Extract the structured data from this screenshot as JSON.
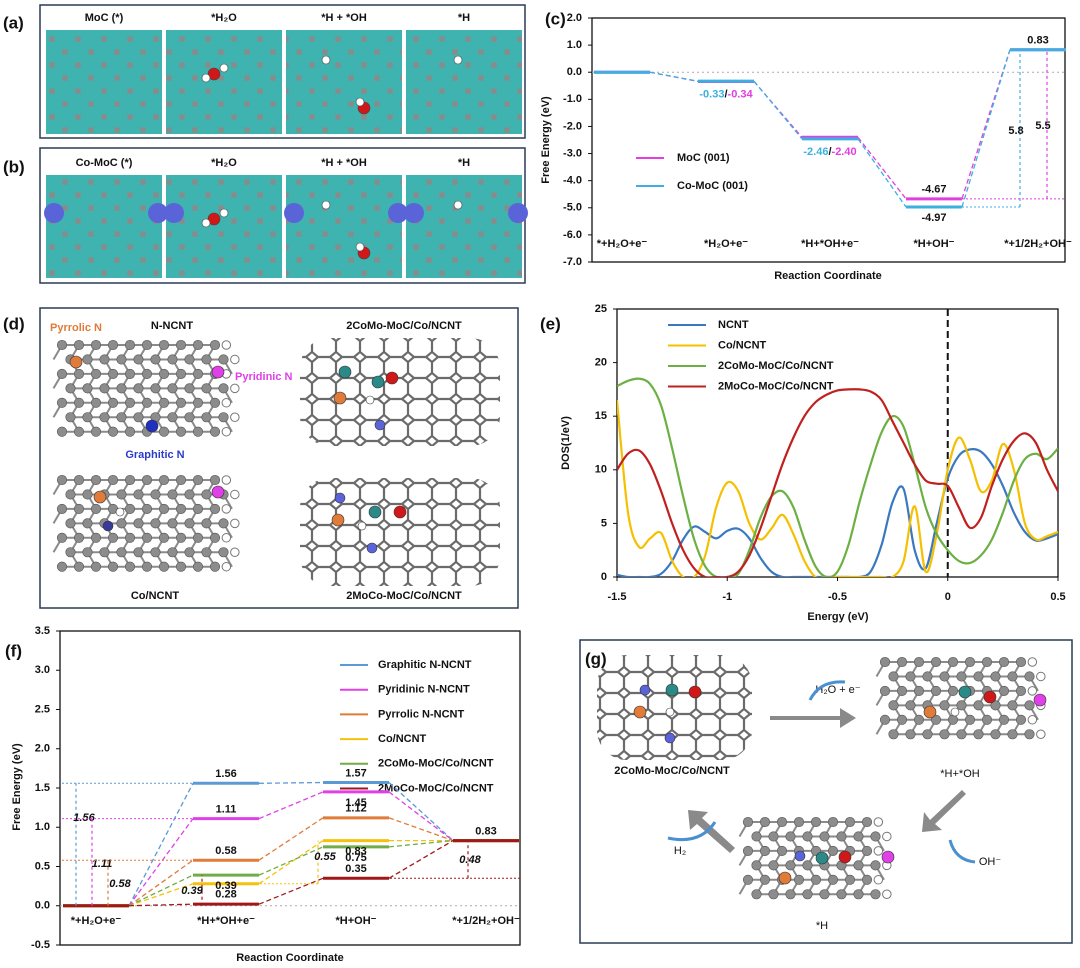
{
  "panels": {
    "a": {
      "label": "(a)",
      "captions": [
        "MoC (*)",
        "*H₂O",
        "*H + *OH",
        "*H"
      ]
    },
    "b": {
      "label": "(b)",
      "captions": [
        "Co-MoC (*)",
        "*H₂O",
        "*H + *OH",
        "*H"
      ]
    },
    "d": {
      "label": "(d)",
      "texts": {
        "pyrrolic": "Pyrrolic N",
        "nncnt": "N-NCNT",
        "cmo": "2CoMo-MoC/Co/NCNT",
        "pyridinic": "Pyridinic N",
        "graphitic": "Graphitic N",
        "conc": "Co/NCNT",
        "mco": "2MoCo-MoC/Co/NCNT"
      }
    },
    "g": {
      "label": "(g)",
      "texts": {
        "step1": "H₂O + e⁻",
        "start": "2CoMo-MoC/Co/NCNT",
        "hoh": "*H+*OH",
        "oh": "OH⁻",
        "h2": "H₂",
        "h": "*H"
      }
    }
  },
  "chart_data": [
    {
      "type": "step",
      "label": "(c)",
      "ylabel": "Free Energy (eV)",
      "xlabel": "Reaction Coordinate",
      "categories": [
        "*+H₂O+e⁻",
        "*H₂O+e⁻",
        "*H+*OH+e⁻",
        "*H+OH⁻",
        "*+1/2H₂+OH⁻"
      ],
      "series": [
        {
          "name": "MoC (001)",
          "color": "#e23ee0",
          "values": [
            0,
            -0.34,
            -2.4,
            -4.67,
            0.83
          ],
          "value_labels": [
            null,
            "-0.34",
            "-2.40",
            "-4.67",
            "0.83"
          ]
        },
        {
          "name": "Co-MoC (001)",
          "color": "#3cb0e0",
          "values": [
            0,
            -0.33,
            -2.46,
            -4.97,
            0.83
          ],
          "value_labels": [
            null,
            "-0.33",
            "-2.46",
            "-4.97",
            null
          ]
        }
      ],
      "label_separator": "/",
      "annotations": [
        {
          "value": 5.8,
          "color": "#3cb0e0"
        },
        {
          "value": 5.5,
          "color": "#e23ee0"
        }
      ],
      "hline": 0,
      "ylim": [
        -7,
        2
      ],
      "yticks": [
        {
          "value": 2,
          "label": "2.0"
        },
        {
          "value": 1,
          "label": "1.0"
        },
        {
          "value": 0,
          "label": "0.0"
        },
        {
          "value": -1,
          "label": "-1.0"
        },
        {
          "value": -2,
          "label": "-2.0"
        },
        {
          "value": -3,
          "label": "-3.0"
        },
        {
          "value": -4,
          "label": "-4.0"
        },
        {
          "value": -5,
          "label": "-5.0"
        },
        {
          "value": -6,
          "label": "-6.0"
        },
        {
          "value": -7,
          "label": "-7.0"
        }
      ]
    },
    {
      "type": "line",
      "label": "(e)",
      "ylabel": "DOS(1/eV)",
      "xlabel": "Energy (eV)",
      "x": [
        -1.5,
        -1.45,
        -1.4,
        -1.35,
        -1.3,
        -1.25,
        -1.2,
        -1.15,
        -1.1,
        -1.05,
        -1.0,
        -0.95,
        -0.9,
        -0.85,
        -0.8,
        -0.75,
        -0.7,
        -0.65,
        -0.6,
        -0.55,
        -0.5,
        -0.45,
        -0.4,
        -0.35,
        -0.3,
        -0.25,
        -0.2,
        -0.15,
        -0.1,
        -0.05,
        0,
        0.05,
        0.1,
        0.15,
        0.2,
        0.25,
        0.3,
        0.35,
        0.4,
        0.45,
        0.5
      ],
      "series": [
        {
          "name": "NCNT",
          "color": "#3a78c0",
          "values": [
            0.2,
            0,
            0,
            0,
            0.3,
            1.5,
            3.5,
            4.7,
            4.2,
            3.6,
            4.3,
            4.5,
            3.6,
            1.8,
            0.5,
            0,
            0,
            0,
            0,
            0,
            0,
            0,
            0,
            0.5,
            3,
            7,
            8.2,
            2.5,
            0.8,
            5,
            9.2,
            11.3,
            11.9,
            11.7,
            10.5,
            8.5,
            6,
            4.2,
            3.4,
            3.6,
            4
          ]
        },
        {
          "name": "Co/NCNT",
          "color": "#f5c000",
          "values": [
            16.5,
            6,
            2.8,
            3.6,
            4.1,
            1.5,
            0,
            0,
            2,
            6.5,
            8.8,
            8,
            5,
            3.5,
            4.5,
            5.8,
            4,
            1.5,
            0,
            0,
            0,
            0,
            0,
            0,
            0,
            0,
            1.5,
            6.6,
            0.5,
            4,
            10,
            13,
            11,
            8,
            9,
            12.4,
            10,
            5,
            3.5,
            3.8,
            4.2
          ]
        },
        {
          "name": "2CoMo-MoC/Co/NCNT",
          "color": "#6cb043",
          "values": [
            17.8,
            18.3,
            18.5,
            18,
            16,
            12,
            7.5,
            3.5,
            1,
            0,
            0,
            0.3,
            2.5,
            5.5,
            7.5,
            8,
            6.5,
            3.5,
            1,
            0,
            0.5,
            3,
            7,
            10.5,
            13.5,
            15,
            14,
            10.5,
            6.5,
            4,
            2.5,
            1.5,
            1.3,
            2,
            3.5,
            6,
            9,
            11,
            11.5,
            11,
            12
          ]
        },
        {
          "name": "2MoCo-MoC/Co/NCNT",
          "color": "#c0201e",
          "values": [
            10,
            11.5,
            11.8,
            10.5,
            8,
            5,
            2.5,
            0.8,
            0,
            0,
            0,
            0.5,
            2,
            4.5,
            7.5,
            10.5,
            13,
            15,
            16.3,
            17,
            17.4,
            17.5,
            17.5,
            17.3,
            16.5,
            14.5,
            12.5,
            10.5,
            9,
            8.7,
            8.5,
            6.5,
            4.6,
            5.5,
            8.5,
            11,
            12.7,
            13.4,
            12.5,
            10,
            8
          ]
        }
      ],
      "vline": 0,
      "xlim": [
        -1.5,
        0.5
      ],
      "xticks": [
        -1.5,
        -1,
        -0.5,
        0,
        0.5
      ],
      "ylim": [
        0,
        25
      ],
      "yticks": [
        0,
        5,
        10,
        15,
        20,
        25
      ]
    },
    {
      "type": "step",
      "label": "(f)",
      "ylabel": "Free Energy (eV)",
      "xlabel": "Reaction Coordinate",
      "categories": [
        "*+H₂O+e⁻",
        "*H+*OH+e⁻",
        "*H+OH⁻",
        "*+1/2H₂+OH⁻"
      ],
      "series": [
        {
          "name": "Graphitic N-NCNT",
          "color": "#5b9bd5",
          "values": [
            0,
            1.56,
            1.57,
            0.83
          ],
          "value_labels": [
            null,
            "1.56",
            "1.57",
            null
          ]
        },
        {
          "name": "Pyridinic N-NCNT",
          "color": "#e040e8",
          "values": [
            0,
            1.11,
            1.45,
            0.83
          ],
          "value_labels": [
            null,
            "1.11",
            "1.45",
            null
          ]
        },
        {
          "name": "Pyrrolic N-NCNT",
          "color": "#e07b39",
          "values": [
            0,
            0.58,
            1.12,
            0.83
          ],
          "value_labels": [
            null,
            "0.58",
            "1.12",
            null
          ]
        },
        {
          "name": "Co/NCNT",
          "color": "#f4c20d",
          "values": [
            0,
            0.28,
            0.83,
            0.83
          ],
          "value_labels": [
            null,
            "0.28",
            "0.83",
            null
          ]
        },
        {
          "name": "2CoMo-MoC/Co/NCNT",
          "color": "#70ad47",
          "values": [
            0,
            0.39,
            0.75,
            0.83
          ],
          "value_labels": [
            null,
            "0.39",
            "0.75",
            "0.83"
          ]
        },
        {
          "name": "2MoCo-MoC/Co/NCNT",
          "color": "#a01818",
          "values": [
            0,
            0.02,
            0.35,
            0.83
          ],
          "value_labels": [
            null,
            null,
            "0.35",
            null
          ]
        }
      ],
      "annotations": [
        {
          "value": 1.56,
          "color": "#5b9bd5"
        },
        {
          "value": 1.11,
          "color": "#e040e8"
        },
        {
          "value": 0.58,
          "color": "#e07b39"
        },
        {
          "value": 0.39,
          "color": "#a01818"
        },
        {
          "value": 0.55,
          "color": "#f4c20d"
        },
        {
          "value": 0.48,
          "color": "#a01818"
        }
      ],
      "hline": 0,
      "ylim": [
        -0.5,
        3.5
      ],
      "yticks": [
        -0.5,
        {
          "value": 0,
          "label": "0.0"
        },
        0.5,
        {
          "value": 1,
          "label": "1.0"
        },
        1.5,
        {
          "value": 2,
          "label": "2.0"
        },
        2.5,
        {
          "value": 3,
          "label": "3.0"
        },
        3.5
      ]
    }
  ]
}
